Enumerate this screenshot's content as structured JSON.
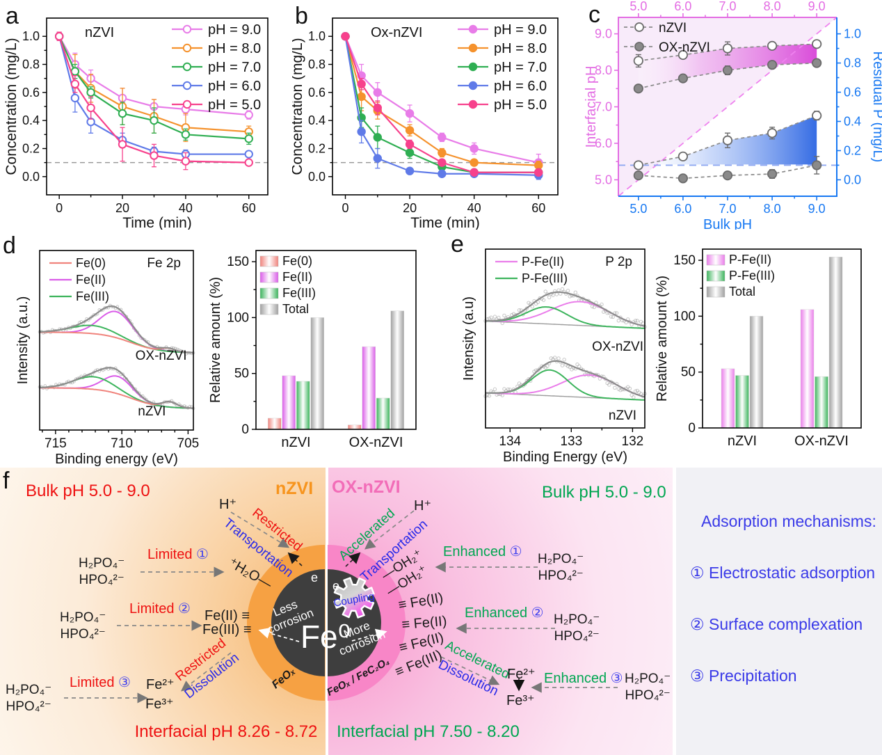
{
  "colors": {
    "ph9": "#e87ce8",
    "ph8": "#f5922d",
    "ph7": "#2fae52",
    "ph6": "#5f7ae8",
    "ph5": "#f7418c",
    "ref_gray": "#999999",
    "magenta_axis": "#e36ce3",
    "blue_axis": "#1778f2",
    "series_gray": "#8a8a8a",
    "diag": "#ee82ee",
    "ref_blue": "#8fa8f2",
    "fe0": "#f0837c",
    "fe2": "#da5ce8",
    "fe3": "#3cb45c",
    "pfe2": "#ea7dea",
    "total": "#a0a0a0",
    "envelope": "#8c8c8c",
    "red": "#ee1111",
    "green": "#00a651",
    "blue_text": "#3a3ae8",
    "orange_label": "#f7941d",
    "pink_label": "#f26db8",
    "ring_orange": "#f6a143",
    "ring_pink": "#f886c7",
    "core_dark": "#3e3e3e"
  },
  "chart_data": [
    {
      "id": "a",
      "panel_label": "a",
      "type": "line",
      "title": "nZVI",
      "xlabel": "Time (min)",
      "ylabel": "Concentration (mg/L)",
      "x": [
        0,
        5,
        10,
        20,
        30,
        40,
        60
      ],
      "xticks": [
        0,
        20,
        40,
        60
      ],
      "xminor": [
        10,
        30,
        50
      ],
      "yticks": [
        0.0,
        0.2,
        0.4,
        0.6,
        0.8,
        1.0
      ],
      "yminor": [
        0.1,
        0.3,
        0.5,
        0.7,
        0.9
      ],
      "xlim": [
        -4,
        66
      ],
      "ylim": [
        -0.13,
        1.13
      ],
      "ref_line_y": 0.1,
      "marker": "open",
      "series": [
        {
          "name": "pH = 9.0",
          "color": "ph9",
          "values": [
            1.0,
            0.8,
            0.7,
            0.56,
            0.5,
            0.48,
            0.44
          ],
          "err": [
            0.03,
            0.08,
            0.06,
            0.07,
            0.05,
            0.04,
            0.03
          ]
        },
        {
          "name": "pH = 8.0",
          "color": "ph8",
          "values": [
            1.0,
            0.75,
            0.63,
            0.5,
            0.43,
            0.35,
            0.32
          ],
          "err": [
            0.02,
            0.12,
            0.1,
            0.13,
            0.12,
            0.1,
            0.04
          ]
        },
        {
          "name": "pH = 7.0",
          "color": "ph7",
          "values": [
            1.0,
            0.75,
            0.6,
            0.45,
            0.4,
            0.3,
            0.27
          ],
          "err": [
            0.02,
            0.05,
            0.04,
            0.08,
            0.09,
            0.04,
            0.04
          ]
        },
        {
          "name": "pH = 6.0",
          "color": "ph6",
          "values": [
            1.0,
            0.56,
            0.39,
            0.26,
            0.18,
            0.16,
            0.16
          ],
          "err": [
            0.02,
            0.1,
            0.08,
            0.05,
            0.03,
            0.03,
            0.02
          ]
        },
        {
          "name": "pH = 5.0",
          "color": "ph5",
          "values": [
            1.0,
            0.66,
            0.49,
            0.23,
            0.15,
            0.11,
            0.1
          ],
          "err": [
            0.03,
            0.06,
            0.08,
            0.12,
            0.08,
            0.06,
            0.02
          ]
        }
      ]
    },
    {
      "id": "b",
      "panel_label": "b",
      "type": "line",
      "title": "Ox-nZVI",
      "xlabel": "Time (min)",
      "ylabel": "Concentration (mg/L)",
      "x": [
        0,
        5,
        10,
        20,
        30,
        40,
        60
      ],
      "xticks": [
        0,
        20,
        40,
        60
      ],
      "xminor": [
        10,
        30,
        50
      ],
      "yticks": [
        0.0,
        0.2,
        0.4,
        0.6,
        0.8,
        1.0
      ],
      "yminor": [
        0.1,
        0.3,
        0.5,
        0.7,
        0.9
      ],
      "xlim": [
        -4,
        66
      ],
      "ylim": [
        -0.13,
        1.13
      ],
      "ref_line_y": 0.1,
      "marker": "filled",
      "series": [
        {
          "name": "pH = 9.0",
          "color": "ph9",
          "values": [
            1.0,
            0.72,
            0.6,
            0.45,
            0.28,
            0.2,
            0.1
          ],
          "err": [
            0.02,
            0.08,
            0.07,
            0.06,
            0.03,
            0.04,
            0.06
          ]
        },
        {
          "name": "pH = 8.0",
          "color": "ph8",
          "values": [
            1.0,
            0.57,
            0.47,
            0.33,
            0.17,
            0.1,
            0.08
          ],
          "err": [
            0.02,
            0.1,
            0.06,
            0.04,
            0.03,
            0.02,
            0.03
          ]
        },
        {
          "name": "pH = 7.0",
          "color": "ph7",
          "values": [
            1.0,
            0.42,
            0.28,
            0.17,
            0.07,
            0.03,
            0.03
          ],
          "err": [
            0.02,
            0.07,
            0.08,
            0.04,
            0.03,
            0.02,
            0.02
          ]
        },
        {
          "name": "pH = 6.0",
          "color": "ph6",
          "values": [
            1.0,
            0.32,
            0.13,
            0.04,
            0.02,
            0.02,
            0.01
          ],
          "err": [
            0.02,
            0.08,
            0.07,
            0.02,
            0.02,
            0.02,
            0.03
          ]
        },
        {
          "name": "pH = 5.0",
          "color": "ph5",
          "values": [
            1.0,
            0.66,
            0.49,
            0.23,
            0.1,
            0.03,
            0.03
          ],
          "err": [
            0.02,
            0.04,
            0.05,
            0.03,
            0.02,
            0.02,
            0.02
          ]
        }
      ]
    },
    {
      "id": "c",
      "panel_label": "c",
      "type": "dual-line",
      "left_axis": {
        "label": "Interfacial pH",
        "ticks": [
          5.0,
          6.0,
          7.0,
          8.0,
          9.0
        ],
        "range": [
          4.55,
          9.45
        ]
      },
      "right_axis": {
        "label": "Residual P (mg/L)",
        "ticks": [
          0.0,
          0.2,
          0.4,
          0.6,
          0.8,
          1.0
        ],
        "range": [
          -0.1125,
          1.1125
        ]
      },
      "bottom_axis": {
        "label": "Bulk pH",
        "ticks": [
          5.0,
          6.0,
          7.0,
          8.0,
          9.0
        ],
        "range": [
          4.55,
          9.45
        ]
      },
      "top_axis": {
        "ticks": [
          5.0,
          6.0,
          7.0,
          8.0,
          9.0
        ]
      },
      "x": [
        5,
        6,
        7,
        8,
        9
      ],
      "legend": [
        "nZVI",
        "OX-nZVI"
      ],
      "interfacial_pH": {
        "nZVI": {
          "values": [
            8.26,
            8.42,
            8.6,
            8.67,
            8.72
          ],
          "err": [
            0.17,
            0.1,
            0.18,
            0.08,
            0.05
          ]
        },
        "OX_nZVI": {
          "values": [
            7.5,
            7.78,
            8.0,
            8.15,
            8.2
          ],
          "err": [
            0.06,
            0.05,
            0.12,
            0.1,
            0.08
          ]
        }
      },
      "residual_P": {
        "nZVI": {
          "values": [
            0.1,
            0.16,
            0.27,
            0.32,
            0.44
          ],
          "err": [
            0.02,
            0.02,
            0.05,
            0.04,
            0.03
          ]
        },
        "OX_nZVI": {
          "values": [
            0.03,
            0.01,
            0.03,
            0.04,
            0.1
          ],
          "err": [
            0.015,
            0.02,
            0.015,
            0.03,
            0.06
          ]
        }
      },
      "ref_line_P": 0.1,
      "diagonal": true
    },
    {
      "id": "d",
      "panel_label": "d",
      "type": "xps+bar",
      "xps": {
        "title": "Fe 2p",
        "xlabel": "Binding energy (eV)",
        "ylabel": "Intensity (a.u.)",
        "xticks": [
          715,
          710,
          705
        ],
        "xminor": [
          716,
          714,
          713,
          712,
          711,
          709,
          708,
          707,
          706
        ],
        "xlim": [
          716.2,
          704.6
        ],
        "bg": {
          "type": "step",
          "amp": 0.115,
          "center": 709.3,
          "k": 0.9
        },
        "legend": [
          {
            "name": "Fe(0)",
            "color": "fe0"
          },
          {
            "name": "Fe(II)",
            "color": "fe2"
          },
          {
            "name": "Fe(III)",
            "color": "fe3"
          }
        ],
        "samples": [
          {
            "name": "OX-nZVI",
            "offset": 0.43,
            "label_fx": 0.79,
            "label_dy": 4,
            "peaks": [
              {
                "id": "Fe(II)",
                "color": "fe2",
                "center": 710.4,
                "amp": 0.145,
                "width": 1.25
              },
              {
                "id": "Fe(III)",
                "color": "fe3",
                "center": 712.2,
                "amp": 0.045,
                "width": 1.6
              },
              {
                "id": "Fe(0)",
                "color": "fe0",
                "center": 706.5,
                "amp": 0.018,
                "width": 0.5
              }
            ]
          },
          {
            "name": "nZVI",
            "offset": 0.12,
            "label_fx": 0.73,
            "label_dy": 4,
            "peaks": [
              {
                "id": "Fe(II)",
                "color": "fe2",
                "center": 710.3,
                "amp": 0.097,
                "width": 1.1
              },
              {
                "id": "Fe(III)",
                "color": "fe3",
                "center": 712.1,
                "amp": 0.07,
                "width": 1.5
              },
              {
                "id": "Fe(0)",
                "color": "fe0",
                "center": 706.4,
                "amp": 0.03,
                "width": 0.55
              }
            ]
          }
        ]
      },
      "bar": {
        "ylabel": "Relative amount (%)",
        "yticks": [
          0,
          50,
          100,
          150
        ],
        "ylim": [
          0,
          160
        ],
        "categories": [
          "nZVI",
          "OX-nZVI"
        ],
        "series": [
          {
            "name": "Fe(0)",
            "color": "fe0",
            "values": [
              10,
              4
            ]
          },
          {
            "name": "Fe(II)",
            "color": "fe2",
            "values": [
              48,
              74
            ]
          },
          {
            "name": "Fe(III)",
            "color": "fe3",
            "values": [
              43,
              28
            ]
          },
          {
            "name": "Total",
            "color": "total",
            "values": [
              100,
              106
            ]
          }
        ]
      }
    },
    {
      "id": "e",
      "panel_label": "e",
      "type": "xps+bar",
      "xps": {
        "title": "P 2p",
        "xlabel": "Binding Energy (eV)",
        "ylabel": "Intensity (a.u)",
        "xticks": [
          134,
          133,
          132
        ],
        "xminor": [
          133.5,
          132.5
        ],
        "xlim": [
          134.4,
          131.8
        ],
        "bg": {
          "type": "linear",
          "left": 0.04,
          "right": 0.0
        },
        "legend": [
          {
            "name": "P-Fe(II)",
            "color": "pfe2"
          },
          {
            "name": "P-Fe(III)",
            "color": "fe3"
          }
        ],
        "samples": [
          {
            "name": "OX-nZVI",
            "offset": 0.557,
            "label_fx": 0.83,
            "label_dy": 26,
            "peaks": [
              {
                "id": "P-Fe(II)",
                "color": "pfe2",
                "center": 132.85,
                "amp": 0.133,
                "width": 0.48
              },
              {
                "id": "P-Fe(III)",
                "color": "fe3",
                "center": 133.4,
                "amp": 0.095,
                "width": 0.33
              }
            ]
          },
          {
            "name": "nZVI",
            "offset": 0.156,
            "label_fx": 0.86,
            "label_dy": 22,
            "peaks": [
              {
                "id": "P-Fe(II)",
                "color": "pfe2",
                "center": 132.7,
                "amp": 0.126,
                "width": 0.45
              },
              {
                "id": "P-Fe(III)",
                "color": "fe3",
                "center": 133.35,
                "amp": 0.144,
                "width": 0.3
              }
            ]
          }
        ]
      },
      "bar": {
        "ylabel": "Relative amount (%)",
        "yticks": [
          0,
          50,
          100,
          150
        ],
        "ylim": [
          0,
          160
        ],
        "categories": [
          "nZVI",
          "OX-nZVI"
        ],
        "series": [
          {
            "name": "P-Fe(II)",
            "color": "pfe2",
            "values": [
              53,
              106
            ]
          },
          {
            "name": "P-Fe(III)",
            "color": "fe3",
            "values": [
              47,
              46
            ]
          },
          {
            "name": "Total",
            "color": "total",
            "values": [
              100,
              153
            ]
          }
        ]
      }
    }
  ],
  "panel_f": {
    "label": "f",
    "left": {
      "bulk_ph": "Bulk pH 5.0 - 9.0",
      "name": "nZVI",
      "h_plus": "H⁺",
      "restricted": "Restricted",
      "transportation": "Transportation",
      "limited": "Limited",
      "num1": "①",
      "num2": "②",
      "num3": "③",
      "phosphate1": "H₂PO₄⁻",
      "phosphate2": "HPO₄²⁻",
      "water": "⁺H₂O—",
      "fe2_site": "Fe(II) ≡",
      "fe3_site": "Fe(III) ≡",
      "restricted2": "Restricted",
      "dissolution": "Dissolution",
      "fe2_ion": "Fe²⁺",
      "fe3_ion": "Fe³⁺",
      "less": "Less",
      "corrosion": "corrosion",
      "core": "Fe⁰",
      "electron": "e",
      "shell": "FeOₓ",
      "interfacial": "Interfacial pH 8.26 - 8.72"
    },
    "right": {
      "name": "OX-nZVI",
      "bulk_ph": "Bulk pH 5.0 - 9.0",
      "h_plus": "H⁺",
      "accelerated": "Accelerated",
      "transportation": "Transportation",
      "oh1": "—OH₂⁺",
      "oh2": "—OH₂⁺",
      "enhanced": "Enhanced",
      "num1": "①",
      "num2": "②",
      "num3": "③",
      "phosphate1": "H₂PO₄⁻",
      "phosphate2": "HPO₄²⁻",
      "site1": "≡ Fe(II)",
      "site2": "≡ Fe(II)",
      "site3": "≡ Fe(II)",
      "site4": "≡ Fe(III)",
      "accelerated2": "Accelerated",
      "dissolution": "Dissolution",
      "fe2_ion": "Fe²⁺",
      "fe3_ion": "Fe³⁺",
      "more": "More",
      "corrosion": "corrosion",
      "electron": "e",
      "coupling": "Coupling",
      "shell": "FeOₓ / FeC₂O₄",
      "interfacial": "Interfacial pH 7.50 - 8.20"
    }
  },
  "mechanisms": {
    "title": "Adsorption mechanisms:",
    "item1": "① Electrostatic adsorption",
    "item2": "② Surface complexation",
    "item3": "③ Precipitation"
  }
}
